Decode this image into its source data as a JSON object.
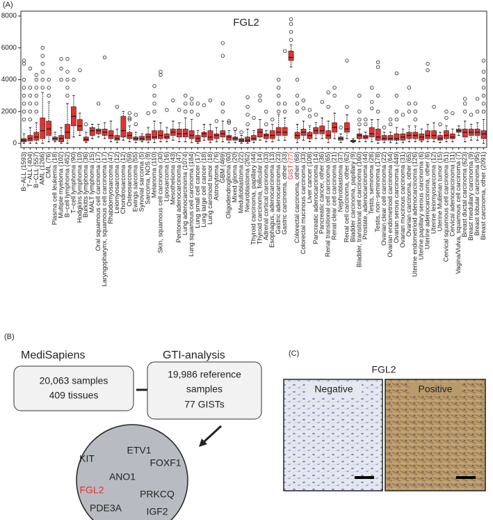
{
  "panel_labels": [
    "(A)",
    "(B)",
    "(C)"
  ],
  "chart_data": {
    "type": "box",
    "title": "FGL2",
    "categories": [
      "B−ALL (1593)",
      "T−ALL (404)",
      "B−CLL (557)",
      "AML (1266)",
      "CML (76)",
      "Plasma cell leukemia (18)",
      "Multiple myeloma (102)",
      "B−cell lymphoma (452)",
      "T−cell lymphoma (90)",
      "Hodgkins lymphoma (10)",
      "Burkitts lymphoma (36)",
      "MALT lymphoma (15)",
      "Oral squamous cell carcinoma (17)",
      "Laryngopharynx, squamous cell carcinoma (17)",
      "Rhabdomyosarcoma (47)",
      "Leiomyosarcoma (12)",
      "Chondrosarcoma (12)",
      "Osteosarcoma (59)",
      "Ewings sarcoma (55)",
      "Synovial sarcoma (5)",
      "Sarcoma, NOS (9)",
      "Melanoma (110)",
      "Skin, squamous cell carcinoma (30)",
      "Liposarcoma (16)",
      "Mesothelioma (43)",
      "Peritoneal adenocarcinoma (47)",
      "Lung adenocarcinoma (1074)",
      "Lung squamous cell carcinoma (184)",
      "Lung small cell cancer (17)",
      "Lung large cell cancer (18)",
      "Lung carcinoid tumor (18)",
      "Astrocytoma (76)",
      "GBM (469)",
      "Oligodendroglioma (60)",
      "Mixed glioma (20)",
      "Medulloblastoma (22)",
      "Neuroblastoma (262)",
      "Thyroid carcinoma, papillary (44)",
      "Thyroid carcinoma, follicular (14)",
      "Adrenal cortical carcinoma (33)",
      "Esophagus, adenocarcinoma (13)",
      "Gastric adenocarcinoma (23)",
      "Gastric carcinoma, other (33)",
      "GIST (77)",
      "Colorectal carcinoma, other (68)",
      "Colorectal mucinous carcinoma (33)",
      "Liver cancer (108)",
      "Pancreatic adenocarcinoma (14)",
      "Pancreatic cancer, other (36)",
      "Renal transitional cell carcinoma (65)",
      "Renal clear cell carcinoma (21)",
      "Nephroblastoma (37)",
      "Renal cell carcinoma, other (62)",
      "Bladder carcinoma, papillary (9)",
      "Bladder, transitional cell carcinoma (160)",
      "Prostate, adenocarcinoma (44)",
      "Testis, seminoma (28)",
      "Testis, non−seminoma (178)",
      "Ovarian clear cell carcinoma (22)",
      "Ovarian endometrioid carcinoma (64)",
      "Ovarian serous carcinoma (449)",
      "Ovarian mucinous carcinoma (31)",
      "Ovarian carcinoma, other (65)",
      "Uterine endometrioid adenocarcinoma (126)",
      "Uterine papillary serous carcinoma (6)",
      "Uterine adenocarcinoma, other (6)",
      "Uterine leiomyosarcoma (12)",
      "Uterine Mullerian tumor (15)",
      "Cervical squamous cell carcinoma (51)",
      "Cervical adenocarcinoma (11)",
      "Vagina/Vulva, squamous cell carcinoma (7)",
      "Breast ductal carcinoma (623)",
      "Breast medullary carcinoma (9)",
      "Breast lobular carcinoma (95)",
      "Breast carcinoma, other (2091)"
    ],
    "whisker_low": [
      0,
      0,
      0,
      0,
      100,
      100,
      0,
      0,
      400,
      500,
      50,
      300,
      400,
      300,
      100,
      50,
      200,
      100,
      50,
      100,
      50,
      50,
      100,
      100,
      200,
      100,
      100,
      50,
      0,
      200,
      50,
      100,
      100,
      50,
      50,
      0,
      0,
      50,
      200,
      100,
      100,
      200,
      200,
      4800,
      50,
      200,
      100,
      300,
      300,
      50,
      300,
      50,
      300,
      50,
      100,
      100,
      100,
      0,
      50,
      50,
      0,
      50,
      100,
      100,
      100,
      100,
      100,
      50,
      100,
      100,
      500,
      100,
      200,
      200,
      0
    ],
    "q1": [
      100,
      150,
      200,
      300,
      500,
      200,
      100,
      300,
      1100,
      800,
      150,
      500,
      600,
      500,
      300,
      200,
      400,
      300,
      200,
      200,
      200,
      300,
      300,
      300,
      500,
      400,
      400,
      300,
      100,
      400,
      200,
      300,
      400,
      200,
      200,
      100,
      100,
      200,
      400,
      300,
      300,
      500,
      500,
      5200,
      300,
      500,
      300,
      600,
      600,
      300,
      700,
      200,
      700,
      100,
      300,
      300,
      400,
      200,
      200,
      200,
      200,
      200,
      300,
      300,
      200,
      300,
      300,
      200,
      300,
      300,
      700,
      400,
      500,
      500,
      300
    ],
    "median": [
      200,
      300,
      400,
      800,
      900,
      300,
      300,
      700,
      1700,
      1100,
      250,
      800,
      800,
      700,
      500,
      300,
      800,
      500,
      300,
      300,
      400,
      400,
      500,
      400,
      700,
      600,
      600,
      500,
      300,
      600,
      400,
      500,
      600,
      400,
      300,
      200,
      200,
      300,
      700,
      500,
      500,
      700,
      700,
      5400,
      500,
      700,
      500,
      800,
      800,
      500,
      1000,
      300,
      900,
      150,
      500,
      400,
      600,
      400,
      300,
      300,
      300,
      400,
      500,
      500,
      400,
      500,
      500,
      300,
      500,
      400,
      800,
      700,
      700,
      700,
      600
    ],
    "q3": [
      300,
      500,
      700,
      1600,
      1400,
      400,
      500,
      1200,
      2300,
      1500,
      400,
      1000,
      900,
      900,
      800,
      500,
      1700,
      700,
      400,
      450,
      600,
      800,
      800,
      600,
      900,
      900,
      900,
      800,
      500,
      700,
      800,
      600,
      800,
      500,
      400,
      300,
      400,
      500,
      900,
      600,
      800,
      1000,
      1000,
      5800,
      700,
      900,
      700,
      1000,
      1100,
      800,
      1300,
      400,
      1300,
      200,
      600,
      500,
      1000,
      900,
      500,
      500,
      600,
      600,
      700,
      700,
      600,
      800,
      800,
      500,
      800,
      600,
      900,
      900,
      900,
      900,
      800
    ],
    "whisker_high": [
      600,
      1000,
      1300,
      3200,
      2600,
      700,
      1000,
      2500,
      3000,
      1900,
      700,
      1200,
      1200,
      1300,
      1400,
      900,
      2000,
      1100,
      700,
      600,
      1000,
      1400,
      1300,
      1000,
      1400,
      1300,
      1600,
      1500,
      800,
      1200,
      1200,
      1000,
      1400,
      800,
      800,
      500,
      900,
      800,
      1500,
      800,
      1200,
      1800,
      1600,
      6200,
      1200,
      1400,
      1100,
      1300,
      1600,
      1400,
      1900,
      600,
      1800,
      300,
      900,
      700,
      1500,
      1500,
      700,
      700,
      1000,
      900,
      1100,
      1100,
      900,
      1200,
      1300,
      700,
      1100,
      900,
      1100,
      1400,
      1200,
      1300,
      1500
    ],
    "outliers": [
      [
        1500,
        2000,
        2500,
        3000,
        3500,
        4000,
        5000,
        5200
      ],
      [
        1500,
        2000,
        2500,
        3000,
        3500,
        4700
      ],
      [
        2000,
        2500,
        3000,
        3500,
        4000,
        4300
      ],
      [
        3500,
        4000,
        4500,
        5000,
        5500,
        6000
      ],
      [
        3000,
        3500,
        4000
      ],
      [],
      [
        4000,
        4700,
        5300
      ],
      [
        3000,
        3500,
        4000,
        4500,
        5300
      ],
      [
        4000
      ],
      [
        4600
      ],
      [
        1200
      ],
      [],
      [
        2500
      ],
      [
        5400
      ],
      [],
      [
        2300
      ],
      [],
      [
        1500,
        1600,
        1900
      ],
      [
        1200,
        1800
      ],
      [],
      [
        1900
      ],
      [
        2000,
        2500,
        3000,
        3600
      ],
      [
        4300,
        4500
      ],
      [
        2100
      ],
      [
        2700
      ],
      [
        2100
      ],
      [
        2000,
        2500,
        3000
      ],
      [
        2000,
        2500,
        2800
      ],
      [
        1800,
        2500
      ],
      [
        2400
      ],
      [
        2700
      ],
      [
        1400
      ],
      [
        2000,
        2500,
        5500,
        6300
      ],
      [
        1300,
        1400
      ],
      [
        900
      ],
      [
        700
      ],
      [
        1200,
        1800,
        2300,
        2900
      ],
      [
        1600
      ],
      [
        2700,
        3000
      ],
      [
        1200,
        2000
      ],
      [
        1500
      ],
      [
        2000,
        2500,
        3000,
        3500,
        4000
      ],
      [
        2000,
        2500,
        5800
      ],
      [
        6500,
        7000,
        7500,
        7800
      ],
      [
        2000,
        2500,
        3000,
        4000
      ],
      [
        2200,
        2700
      ],
      [
        1700,
        2100
      ],
      [
        1800
      ],
      [
        2600
      ],
      [
        2300,
        3200
      ],
      [
        3000,
        3500
      ],
      [
        1000
      ],
      [
        2300,
        5200
      ],
      [],
      [
        1200,
        1500,
        2000,
        3000
      ],
      [
        1200,
        1500
      ],
      [
        2200,
        2600,
        3500
      ],
      [
        2000,
        3000,
        4800,
        5100
      ],
      [
        1000
      ],
      [
        1200,
        1500
      ],
      [
        1500,
        2000,
        3000,
        4400
      ],
      [
        1800
      ],
      [
        2000,
        2500,
        3500
      ],
      [
        1500,
        2000,
        2500
      ],
      [],
      [
        4600,
        5000
      ],
      [
        2300
      ],
      [
        1200
      ],
      [
        1600,
        2000
      ],
      [
        1900
      ],
      [],
      [
        2000,
        2500,
        2800
      ],
      [
        1800
      ],
      [
        2000,
        2800
      ],
      [
        2000,
        2500,
        3000,
        3500,
        4000,
        4500,
        5200
      ]
    ],
    "color": "#e8302f",
    "highlight": {
      "category": "GIST (77)",
      "color": "#e8302f"
    },
    "ylim": [
      0,
      8000
    ],
    "yticks": [
      0,
      2000,
      4000,
      6000,
      8000
    ]
  },
  "panel_b": {
    "left_title": "MediSapiens",
    "right_title": "GTI-analysis",
    "left_box": [
      "20,063 samples",
      "409 tissues"
    ],
    "right_box": [
      "19,986 reference",
      "samples",
      "77 GISTs"
    ],
    "genes": [
      {
        "label": "ETV1",
        "color": "#222222"
      },
      {
        "label": "KIT",
        "color": "#222222"
      },
      {
        "label": "FOXF1",
        "color": "#222222"
      },
      {
        "label": "ANO1",
        "color": "#222222"
      },
      {
        "label": "FGL2",
        "color": "#e8302f"
      },
      {
        "label": "PRKCQ",
        "color": "#222222"
      },
      {
        "label": "PDE3A",
        "color": "#222222"
      },
      {
        "label": "IGF2",
        "color": "#222222"
      }
    ]
  },
  "panel_c": {
    "title": "FGL2",
    "negative": "Negative",
    "positive": "Positive"
  }
}
